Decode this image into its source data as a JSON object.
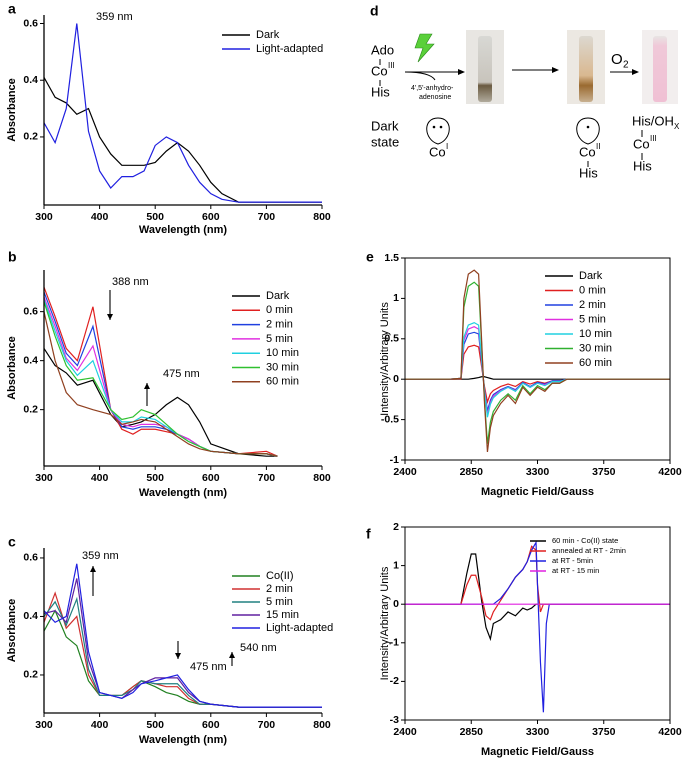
{
  "chart_data": [
    {
      "type": "line",
      "label": "a",
      "x_label": "Wavelength (nm)",
      "y_label": "Absorbance",
      "xlim": [
        300,
        800
      ],
      "xticks": [
        300,
        400,
        500,
        600,
        700,
        800
      ],
      "ylim": [
        -0.04,
        0.63
      ],
      "yticks": [
        0.2,
        0.4,
        0.6
      ],
      "box": false,
      "legend": "upper right",
      "annotations": [
        "359 nm"
      ],
      "x": [
        300,
        320,
        340,
        359,
        380,
        400,
        420,
        440,
        460,
        480,
        500,
        520,
        540,
        560,
        580,
        600,
        620,
        650,
        700,
        750,
        800
      ],
      "series": [
        {
          "name": "Dark",
          "color": "#000000",
          "values": [
            0.41,
            0.34,
            0.32,
            0.28,
            0.3,
            0.2,
            0.14,
            0.1,
            0.1,
            0.1,
            0.11,
            0.15,
            0.18,
            0.15,
            0.1,
            0.04,
            0.0,
            -0.03,
            -0.03,
            -0.03,
            -0.03
          ]
        },
        {
          "name": "Light-adapted",
          "color": "#2020e0",
          "values": [
            0.25,
            0.18,
            0.3,
            0.6,
            0.22,
            0.08,
            0.02,
            0.06,
            0.06,
            0.08,
            0.17,
            0.2,
            0.18,
            0.1,
            0.04,
            0.0,
            -0.02,
            -0.03,
            -0.03,
            -0.03,
            -0.03
          ]
        }
      ]
    },
    {
      "type": "line",
      "label": "b",
      "x_label": "Wavelength (nm)",
      "y_label": "Absorbance",
      "xlim": [
        300,
        800
      ],
      "xticks": [
        300,
        400,
        500,
        600,
        700,
        800
      ],
      "ylim": [
        -0.03,
        0.77
      ],
      "yticks": [
        0.2,
        0.4,
        0.6
      ],
      "box": false,
      "legend": "upper right",
      "annotations": [
        "388 nm",
        "475 nm"
      ],
      "x": [
        300,
        320,
        340,
        360,
        388,
        420,
        440,
        460,
        475,
        500,
        520,
        540,
        560,
        580,
        600,
        650,
        700,
        720
      ],
      "series": [
        {
          "name": "Dark",
          "color": "#000000",
          "values": [
            0.45,
            0.38,
            0.35,
            0.3,
            0.32,
            0.18,
            0.13,
            0.14,
            0.15,
            0.18,
            0.22,
            0.25,
            0.22,
            0.15,
            0.06,
            0.02,
            0.01,
            0.01
          ]
        },
        {
          "name": "0 min",
          "color": "#e02020",
          "values": [
            0.7,
            0.58,
            0.45,
            0.4,
            0.62,
            0.2,
            0.12,
            0.1,
            0.12,
            0.12,
            0.11,
            0.1,
            0.08,
            0.05,
            0.03,
            0.02,
            0.03,
            0.01
          ]
        },
        {
          "name": "2 min",
          "color": "#2040e0",
          "values": [
            0.68,
            0.56,
            0.43,
            0.38,
            0.54,
            0.2,
            0.13,
            0.12,
            0.13,
            0.13,
            0.12,
            0.1,
            0.08,
            0.05,
            0.03,
            0.02,
            0.02,
            0.01
          ]
        },
        {
          "name": "5 min",
          "color": "#e030e0",
          "values": [
            0.66,
            0.54,
            0.41,
            0.36,
            0.46,
            0.2,
            0.14,
            0.13,
            0.14,
            0.14,
            0.13,
            0.1,
            0.08,
            0.05,
            0.03,
            0.02,
            0.02,
            0.01
          ]
        },
        {
          "name": "10 min",
          "color": "#20d0e0",
          "values": [
            0.65,
            0.52,
            0.4,
            0.34,
            0.4,
            0.2,
            0.15,
            0.15,
            0.17,
            0.16,
            0.13,
            0.1,
            0.07,
            0.05,
            0.03,
            0.02,
            0.02,
            0.01
          ]
        },
        {
          "name": "30 min",
          "color": "#30c030",
          "values": [
            0.64,
            0.5,
            0.38,
            0.32,
            0.33,
            0.2,
            0.16,
            0.17,
            0.2,
            0.18,
            0.14,
            0.1,
            0.07,
            0.05,
            0.03,
            0.02,
            0.02,
            0.01
          ]
        },
        {
          "name": "60 min",
          "color": "#904020",
          "values": [
            0.6,
            0.4,
            0.27,
            0.22,
            0.2,
            0.18,
            0.14,
            0.15,
            0.16,
            0.15,
            0.12,
            0.09,
            0.06,
            0.04,
            0.03,
            0.02,
            0.02,
            0.01
          ]
        }
      ]
    },
    {
      "type": "line",
      "label": "c",
      "x_label": "Wavelength (nm)",
      "y_label": "Absorbance",
      "xlim": [
        300,
        800
      ],
      "xticks": [
        300,
        400,
        500,
        600,
        700,
        800
      ],
      "ylim": [
        0.07,
        0.634
      ],
      "yticks": [
        0.2,
        0.4,
        0.6
      ],
      "box": false,
      "legend": "upper right",
      "annotations": [
        "359 nm",
        "475 nm",
        "540 nm"
      ],
      "x": [
        300,
        320,
        340,
        359,
        380,
        400,
        420,
        440,
        460,
        475,
        500,
        520,
        540,
        560,
        580,
        600,
        650,
        700,
        800
      ],
      "series": [
        {
          "name": "Co(II)",
          "color": "#208020",
          "values": [
            0.35,
            0.42,
            0.33,
            0.3,
            0.18,
            0.13,
            0.13,
            0.13,
            0.16,
            0.18,
            0.16,
            0.14,
            0.13,
            0.11,
            0.1,
            0.1,
            0.09,
            0.09,
            0.09
          ]
        },
        {
          "name": "2 min",
          "color": "#d03030",
          "values": [
            0.38,
            0.48,
            0.36,
            0.4,
            0.2,
            0.13,
            0.13,
            0.13,
            0.16,
            0.18,
            0.17,
            0.16,
            0.16,
            0.12,
            0.1,
            0.1,
            0.09,
            0.09,
            0.09
          ]
        },
        {
          "name": "5 min",
          "color": "#208080",
          "values": [
            0.4,
            0.45,
            0.37,
            0.46,
            0.22,
            0.13,
            0.13,
            0.13,
            0.15,
            0.18,
            0.17,
            0.17,
            0.17,
            0.13,
            0.1,
            0.1,
            0.09,
            0.09,
            0.09
          ]
        },
        {
          "name": "15 min",
          "color": "#6020a0",
          "values": [
            0.41,
            0.42,
            0.38,
            0.53,
            0.25,
            0.14,
            0.13,
            0.12,
            0.15,
            0.17,
            0.19,
            0.19,
            0.19,
            0.14,
            0.11,
            0.1,
            0.09,
            0.09,
            0.09
          ]
        },
        {
          "name": "Light-adapted",
          "color": "#2020e0",
          "values": [
            0.42,
            0.38,
            0.4,
            0.58,
            0.28,
            0.14,
            0.13,
            0.12,
            0.14,
            0.17,
            0.18,
            0.19,
            0.2,
            0.15,
            0.11,
            0.1,
            0.09,
            0.09,
            0.09
          ]
        }
      ]
    },
    {
      "type": "line",
      "label": "e",
      "x_label": "Magnetic Field/Gauss",
      "y_label": "Intensity/Arbitrary Units",
      "xlim": [
        2400,
        4200
      ],
      "xticks": [
        2400,
        2850,
        3300,
        3750,
        4200
      ],
      "ylim": [
        -1,
        1.5
      ],
      "yticks": [
        -1,
        -0.5,
        0,
        0.5,
        1,
        1.5
      ],
      "box": true,
      "legend": "upper right",
      "annotations": [],
      "x": [
        2400,
        2700,
        2780,
        2800,
        2830,
        2870,
        2900,
        2920,
        2940,
        2960,
        2980,
        3000,
        3050,
        3100,
        3150,
        3200,
        3250,
        3300,
        3350,
        3400,
        3450,
        3500,
        3750,
        4200
      ],
      "series": [
        {
          "name": "Dark",
          "color": "#000000",
          "values": [
            0,
            0,
            0,
            0,
            0,
            0.01,
            0.02,
            0.03,
            0.03,
            0.02,
            0.01,
            0,
            0,
            0,
            0,
            0,
            0,
            0,
            0,
            0,
            0,
            0,
            0,
            0
          ]
        },
        {
          "name": "0 min",
          "color": "#e02020",
          "values": [
            0,
            0,
            0,
            0.31,
            0.4,
            0.42,
            0.4,
            0.16,
            -0.09,
            -0.28,
            -0.18,
            -0.14,
            -0.09,
            -0.06,
            -0.09,
            -0.03,
            -0.06,
            -0.03,
            -0.05,
            -0.02,
            -0.02,
            0,
            0,
            0
          ]
        },
        {
          "name": "2 min",
          "color": "#2040e0",
          "values": [
            0,
            0,
            0.01,
            0.43,
            0.56,
            0.58,
            0.56,
            0.21,
            -0.13,
            -0.39,
            -0.26,
            -0.19,
            -0.13,
            -0.09,
            -0.13,
            -0.04,
            -0.09,
            -0.04,
            -0.06,
            -0.02,
            -0.02,
            0,
            0,
            0
          ]
        },
        {
          "name": "5 min",
          "color": "#e030e0",
          "values": [
            0,
            0,
            0.01,
            0.48,
            0.62,
            0.65,
            0.62,
            0.24,
            -0.14,
            -0.44,
            -0.29,
            -0.21,
            -0.14,
            -0.1,
            -0.14,
            -0.05,
            -0.1,
            -0.05,
            -0.07,
            -0.03,
            -0.03,
            0,
            0,
            0
          ]
        },
        {
          "name": "10 min",
          "color": "#20d0e0",
          "values": [
            0,
            0,
            0.01,
            0.52,
            0.67,
            0.7,
            0.67,
            0.26,
            -0.15,
            -0.47,
            -0.31,
            -0.23,
            -0.15,
            -0.1,
            -0.15,
            -0.05,
            -0.1,
            -0.05,
            -0.08,
            -0.03,
            -0.03,
            0,
            0,
            0
          ]
        },
        {
          "name": "30 min",
          "color": "#30b030",
          "values": [
            0,
            0,
            0.01,
            0.89,
            1.15,
            1.2,
            1.15,
            0.44,
            -0.26,
            -0.8,
            -0.53,
            -0.4,
            -0.26,
            -0.18,
            -0.26,
            -0.08,
            -0.18,
            -0.08,
            -0.13,
            -0.05,
            -0.05,
            0,
            0,
            0
          ]
        },
        {
          "name": "60 min",
          "color": "#904020",
          "values": [
            0,
            0,
            0.01,
            1.0,
            1.3,
            1.35,
            1.3,
            0.5,
            -0.3,
            -0.9,
            -0.6,
            -0.45,
            -0.3,
            -0.2,
            -0.3,
            -0.1,
            -0.2,
            -0.1,
            -0.15,
            -0.05,
            -0.05,
            0,
            0,
            0
          ]
        }
      ]
    },
    {
      "type": "line",
      "label": "f",
      "x_label": "Magnetic Field/Gauss",
      "y_label": "Intensity/Arbitrary Units",
      "xlim": [
        2400,
        4200
      ],
      "xticks": [
        2400,
        2850,
        3300,
        3750,
        4200
      ],
      "ylim": [
        -3,
        2
      ],
      "yticks": [
        -3,
        -2,
        -1,
        0,
        1,
        2
      ],
      "box": true,
      "legend": "upper right",
      "annotations": [],
      "x": [
        2400,
        2780,
        2820,
        2850,
        2880,
        2920,
        2950,
        2980,
        3000,
        3050,
        3100,
        3150,
        3200,
        3230,
        3260,
        3290,
        3300,
        3320,
        3340,
        3360,
        3380,
        3400,
        3750,
        4200
      ],
      "series": [
        {
          "name": "60 min - Co(II) state",
          "color": "#000000",
          "values": [
            0,
            0,
            0.8,
            1.3,
            1.3,
            0.1,
            -0.6,
            -0.9,
            -0.5,
            -0.4,
            -0.2,
            -0.3,
            -0.1,
            -0.15,
            -0.1,
            0,
            0,
            0,
            0,
            0,
            0,
            0,
            0,
            0
          ]
        },
        {
          "name": "annealed at RT - 2min",
          "color": "#e02020",
          "values": [
            0,
            0,
            0.5,
            0.75,
            0.75,
            0.2,
            -0.3,
            -0.4,
            -0.2,
            0.1,
            0.4,
            0.7,
            0.9,
            1.1,
            1.5,
            1.4,
            0.5,
            -0.2,
            0,
            0,
            0,
            0,
            0,
            0
          ]
        },
        {
          "name": "at RT - 5min",
          "color": "#2020e0",
          "values": [
            0,
            0,
            0,
            0,
            0,
            0,
            0,
            0,
            0,
            0.15,
            0.4,
            0.7,
            0.9,
            1.1,
            1.4,
            1.6,
            0.5,
            -1.5,
            -2.8,
            -0.5,
            0,
            0,
            0,
            0
          ]
        },
        {
          "name": "at RT - 15 min",
          "color": "#e020e0",
          "values": [
            0,
            0,
            0,
            0,
            0,
            0,
            0,
            0,
            0,
            0,
            0,
            0,
            0,
            0,
            0,
            0,
            0,
            0,
            0,
            0,
            0,
            0,
            0,
            0
          ]
        }
      ]
    }
  ],
  "diagram": {
    "label": "d",
    "ado": "Ado",
    "co": "Co",
    "co_ox": "III",
    "his": "His",
    "reagent": [
      "4',5'-anhydro-",
      "adenosine"
    ],
    "o2": "O",
    "o2_sub": "2",
    "dark_state": [
      "Dark",
      "state"
    ],
    "species": [
      {
        "metal": "Co",
        "ox": "I"
      },
      {
        "metal": "Co",
        "ox": "II",
        "ligand": "His"
      },
      {
        "top": "His/OH",
        "top_sub": "X",
        "metal": "Co",
        "ox": "III",
        "ligand": "His"
      }
    ]
  }
}
